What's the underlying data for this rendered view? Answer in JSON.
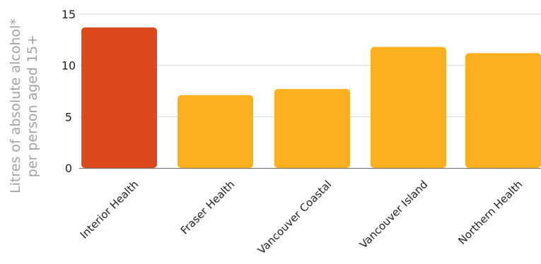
{
  "chart_data": {
    "type": "bar",
    "title": "",
    "xlabel": "",
    "ylabel_lines": [
      "Litres of absolute alcohol*",
      "per person aged 15+"
    ],
    "categories": [
      "Interior Health",
      "Fraser Health",
      "Vancouver Coastal",
      "Vancouver Island",
      "Northern Health"
    ],
    "values": [
      13.7,
      7.1,
      7.7,
      11.8,
      11.2
    ],
    "yticks": [
      0,
      5,
      10,
      15
    ],
    "ylim": [
      0,
      15
    ],
    "grid": true,
    "colors": {
      "highlight": "#dc4a1b",
      "default": "#fdb01f",
      "grid": "#d9d9d9",
      "axis": "#7a7a7a",
      "text": "#231f20"
    },
    "highlight_index": 0
  }
}
